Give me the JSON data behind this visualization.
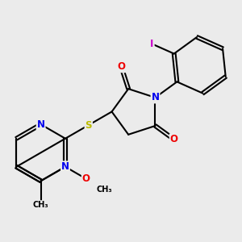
{
  "background_color": "#ebebeb",
  "bond_color": "#000000",
  "bond_width": 1.5,
  "dbo": 0.055,
  "atom_colors": {
    "N": "#0000ee",
    "O": "#ee0000",
    "S": "#bbbb00",
    "I": "#cc00cc",
    "C": "#000000"
  },
  "font_size": 8.5
}
